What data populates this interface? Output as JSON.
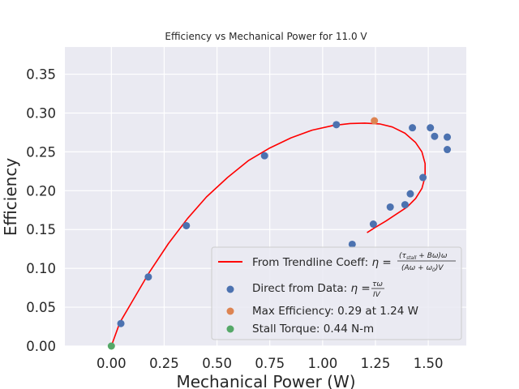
{
  "chart_data": {
    "type": "scatter",
    "title": "Efficiency vs Mechanical Power for 11.0 V",
    "xlabel": "Mechanical Power (W)",
    "ylabel": "Efficiency",
    "xlim": [
      -0.22,
      1.68
    ],
    "ylim": [
      0.0,
      0.385
    ],
    "x_ticks": [
      "0.00",
      "0.25",
      "0.50",
      "0.75",
      "1.00",
      "1.25",
      "1.50"
    ],
    "x_tick_values": [
      0.0,
      0.25,
      0.5,
      0.75,
      1.0,
      1.25,
      1.5
    ],
    "y_ticks": [
      "0.00",
      "0.05",
      "0.10",
      "0.15",
      "0.20",
      "0.25",
      "0.30",
      "0.35"
    ],
    "y_tick_values": [
      0.0,
      0.05,
      0.1,
      0.15,
      0.2,
      0.25,
      0.3,
      0.35
    ],
    "grid": true,
    "legend_position": "lower-right",
    "background_color": "#eaeaf2",
    "series": [
      {
        "name": "From Trendline Coeff",
        "type": "line",
        "color": "#ff0000",
        "x": [
          0.0,
          0.04,
          0.1,
          0.18,
          0.27,
          0.36,
          0.45,
          0.55,
          0.65,
          0.75,
          0.85,
          0.95,
          1.05,
          1.13,
          1.2,
          1.27,
          1.33,
          1.39,
          1.44,
          1.47,
          1.485,
          1.485,
          1.47,
          1.44,
          1.4,
          1.35,
          1.3,
          1.25,
          1.21
        ],
        "y": [
          0.0,
          0.03,
          0.058,
          0.095,
          0.132,
          0.164,
          0.192,
          0.217,
          0.239,
          0.255,
          0.268,
          0.278,
          0.284,
          0.2865,
          0.287,
          0.286,
          0.282,
          0.274,
          0.262,
          0.25,
          0.235,
          0.218,
          0.203,
          0.19,
          0.179,
          0.17,
          0.161,
          0.153,
          0.146
        ]
      },
      {
        "name": "Direct from Data",
        "type": "scatter",
        "color": "#4c72b0",
        "x": [
          0.045,
          0.175,
          0.355,
          0.725,
          1.065,
          1.14,
          1.24,
          1.32,
          1.39,
          1.415,
          1.425,
          1.475,
          1.51,
          1.53,
          1.59,
          1.59
        ],
        "y": [
          0.029,
          0.089,
          0.155,
          0.245,
          0.285,
          0.131,
          0.157,
          0.179,
          0.182,
          0.196,
          0.281,
          0.217,
          0.281,
          0.27,
          0.269,
          0.253
        ]
      },
      {
        "name": "Max Efficiency: 0.29 at 1.24 W",
        "type": "scatter",
        "color": "#dd8452",
        "x": [
          1.245
        ],
        "y": [
          0.29
        ]
      },
      {
        "name": "Stall Torque: 0.44 N-m",
        "type": "scatter",
        "color": "#55a868",
        "x": [
          0.0
        ],
        "y": [
          0.0
        ]
      }
    ],
    "legend_labels": {
      "trend_prefix": "From Trendline Coeff: ",
      "trend_formula": "η = ((τstall + Bω)ω) / ((Aω + ω0)V)",
      "direct_prefix": "Direct from Data: ",
      "direct_formula": "η = τω / IV",
      "max": "Max Efficiency: 0.29 at 1.24 W",
      "stall": "Stall Torque: 0.44 N-m"
    }
  }
}
